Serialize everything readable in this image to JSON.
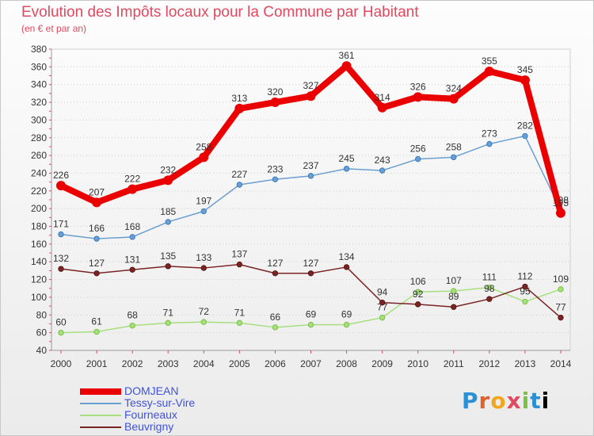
{
  "header": {
    "title": "Evolution des Impôts locaux pour la Commune par Habitant",
    "subtitle": "(en € et par an)"
  },
  "logo": {
    "text": "Proxiti",
    "letters": [
      "P",
      "r",
      "o",
      "x",
      "i",
      "t",
      "i"
    ]
  },
  "chart_data": {
    "type": "line",
    "title": "Evolution des Impôts locaux pour la Commune par Habitant",
    "subtitle": "(en € et par an)",
    "xlabel": "",
    "ylabel": "",
    "x": [
      "2000",
      "2001",
      "2002",
      "2003",
      "2004",
      "2005",
      "2006",
      "2007",
      "2008",
      "2009",
      "2010",
      "2011",
      "2012",
      "2013",
      "2014"
    ],
    "ylim": [
      40,
      380
    ],
    "yticks": [
      40,
      60,
      80,
      100,
      120,
      140,
      160,
      180,
      200,
      220,
      240,
      260,
      280,
      300,
      320,
      340,
      360,
      380
    ],
    "grid": "horizontal-dotted",
    "legend_position": "bottom-left",
    "series": [
      {
        "name": "DOMJEAN",
        "color": "#ea0000",
        "emphasis": "thick",
        "values": [
          226,
          207,
          222,
          232,
          258,
          313,
          320,
          327,
          361,
          314,
          326,
          324,
          355,
          345,
          195
        ],
        "labels": [
          "226",
          "207",
          "222",
          "232",
          "258",
          "313",
          "320",
          "327",
          "361",
          "314",
          "326",
          "324",
          "355",
          "345",
          "195"
        ]
      },
      {
        "name": "Tessy-sur-Vire",
        "color": "#6a9fd0",
        "marker": "#3a7cc4",
        "emphasis": "thin",
        "values": [
          171,
          166,
          168,
          185,
          197,
          227,
          233,
          237,
          245,
          243,
          256,
          258,
          273,
          282,
          198
        ],
        "labels": [
          "171",
          "166",
          "168",
          "185",
          "197",
          "227",
          "233",
          "237",
          "245",
          "243",
          "256",
          "258",
          "273",
          "282",
          "198"
        ]
      },
      {
        "name": "Fourneaux",
        "color": "#a6e07e",
        "marker": "#7cc043",
        "emphasis": "thin",
        "values": [
          60,
          61,
          68,
          71,
          72,
          71,
          66,
          69,
          69,
          77,
          106,
          107,
          111,
          95,
          109
        ],
        "labels": [
          "60",
          "61",
          "68",
          "71",
          "72",
          "71",
          "66",
          "69",
          "69",
          "77",
          "106",
          "107",
          "111",
          "95",
          "109"
        ]
      },
      {
        "name": "Beuvrigny",
        "color": "#7a2424",
        "marker": "#5a1515",
        "emphasis": "thin",
        "values": [
          132,
          127,
          131,
          135,
          133,
          137,
          127,
          127,
          134,
          94,
          92,
          89,
          98,
          112,
          77
        ],
        "labels": [
          "132",
          "127",
          "131",
          "135",
          "133",
          "137",
          "127",
          "127",
          "134",
          "94",
          "92",
          "89",
          "98",
          "112",
          "77"
        ]
      }
    ]
  }
}
